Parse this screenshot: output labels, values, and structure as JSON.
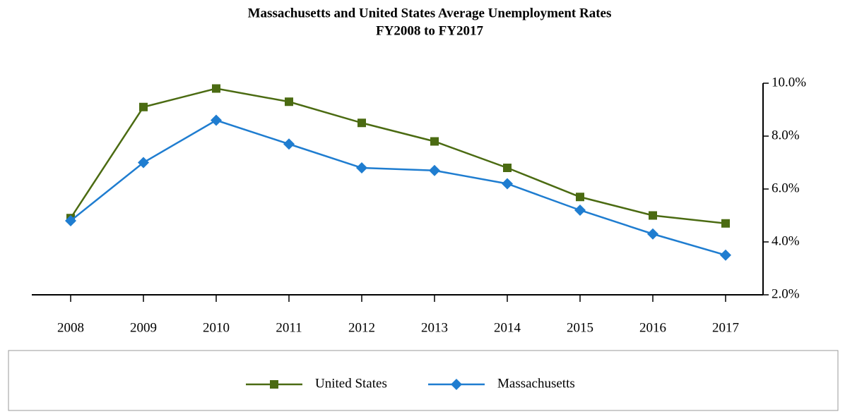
{
  "chart_data": {
    "type": "line",
    "title": "Massachusetts and United States Average Unemployment Rates",
    "subtitle": "FY2008 to FY2017",
    "categories": [
      "2008",
      "2009",
      "2010",
      "2011",
      "2012",
      "2013",
      "2014",
      "2015",
      "2016",
      "2017"
    ],
    "series": [
      {
        "name": "United States",
        "color": "#4b6b12",
        "marker": "square",
        "values": [
          4.9,
          9.1,
          9.8,
          9.3,
          8.5,
          7.8,
          6.8,
          5.7,
          5.0,
          4.7
        ]
      },
      {
        "name": "Massachusetts",
        "color": "#1f7dd0",
        "marker": "diamond",
        "values": [
          4.8,
          7.0,
          8.6,
          7.7,
          6.8,
          6.7,
          6.2,
          5.2,
          4.3,
          3.5
        ]
      }
    ],
    "ylim": [
      2,
      10
    ],
    "yticks": [
      {
        "value": 2,
        "label": "2.0%"
      },
      {
        "value": 4,
        "label": "4.0%"
      },
      {
        "value": 6,
        "label": "6.0%"
      },
      {
        "value": 8,
        "label": "8.0%"
      },
      {
        "value": 10,
        "label": "10.0%"
      }
    ],
    "y_axis_side": "right",
    "grid": false,
    "legend": "bottom"
  }
}
